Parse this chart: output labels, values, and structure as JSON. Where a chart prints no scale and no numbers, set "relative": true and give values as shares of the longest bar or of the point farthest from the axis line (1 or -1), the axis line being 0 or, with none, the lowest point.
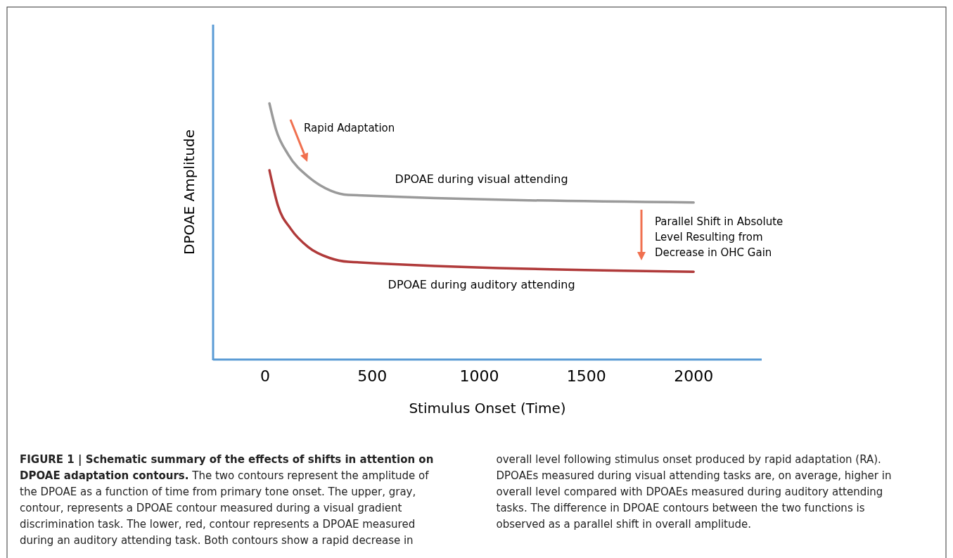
{
  "chart_data": {
    "type": "line",
    "title": "FIGURE 1 | Schematic summary of the effects of shifts in attention on DPOAE adaptation contours.",
    "xlabel": "Stimulus Onset (Time)",
    "ylabel": "DPOAE Amplitude",
    "relative": true,
    "xlim": [
      -243,
      2318
    ],
    "xticks": [
      0,
      500,
      1000,
      1500,
      2000
    ],
    "grid": false,
    "marker": "none",
    "line_style": "solid",
    "series": [
      {
        "name": "DPOAE during visual attending",
        "color": "#9a9a9a",
        "x": [
          20,
          50,
          108,
          207,
          305,
          388,
          2000
        ],
        "values": [
          1.0,
          0.9,
          0.8,
          0.71,
          0.66,
          0.643,
          0.613
        ]
      },
      {
        "name": "DPOAE during auditory attending",
        "color": "#b03a3a",
        "x": [
          20,
          60,
          120,
          200,
          300,
          388,
          2000
        ],
        "values": [
          0.739,
          0.6,
          0.51,
          0.44,
          0.397,
          0.382,
          0.343
        ]
      }
    ],
    "annotations": [
      "Rapid Adaptation",
      "Parallel Shift in Absolute\nLevel Resulting from\nDecrease in OHC Gain",
      "The two contours represent the amplitude of the DPOAE as a function of time from primary tone onset. The upper, gray, contour, represents a DPOAE contour measured during a visual gradient discrimination task. The lower, red, contour represents a DPOAE measured during an auditory attending task. Both contours show a rapid decrease in overall level following stimulus onset produced by rapid adaptation (RA). DPOAEs measured during visual attending tasks are, on average, higher in overall level compared with DPOAEs measured during auditory attending tasks. The difference in DPOAE contours between the two functions is observed as a parallel shift in overall amplitude."
    ]
  }
}
